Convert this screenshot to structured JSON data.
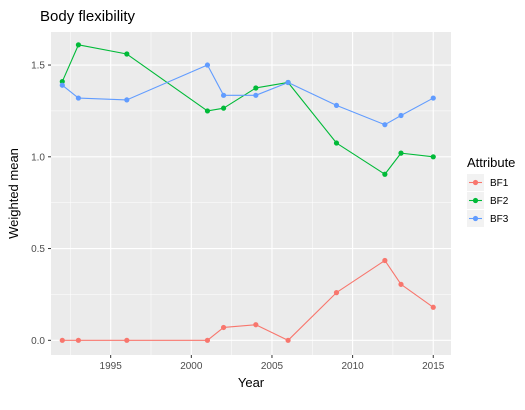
{
  "chart_data": {
    "type": "line",
    "title": "Body flexibility",
    "xlabel": "Year",
    "ylabel": "Weighted mean",
    "xlim": [
      1991.3,
      2016.1
    ],
    "ylim": [
      -0.08,
      1.68
    ],
    "x_ticks": [
      1995,
      2000,
      2005,
      2010,
      2015
    ],
    "x_tick_labels": [
      "1995",
      "2000",
      "2005",
      "2010",
      "2015"
    ],
    "y_ticks": [
      0.0,
      0.5,
      1.0,
      1.5
    ],
    "y_tick_labels": [
      "0.0",
      "0.5",
      "1.0",
      "1.5"
    ],
    "grid": true,
    "legend": {
      "title": "Attribute",
      "position": "right"
    },
    "panel_color": "#ebebeb",
    "series": [
      {
        "name": "BF1",
        "color": "#F8766D",
        "x": [
          1992,
          1993,
          1996,
          2001,
          2002,
          2004,
          2006,
          2009,
          2012,
          2013,
          2015
        ],
        "y": [
          0.0,
          0.0,
          0.0,
          0.0,
          0.07,
          0.085,
          0.0,
          0.26,
          0.435,
          0.305,
          0.18
        ]
      },
      {
        "name": "BF2",
        "color": "#00BA38",
        "x": [
          1992,
          1993,
          1996,
          2001,
          2002,
          2004,
          2006,
          2009,
          2012,
          2013,
          2015
        ],
        "y": [
          1.41,
          1.61,
          1.56,
          1.25,
          1.265,
          1.375,
          1.405,
          1.075,
          0.905,
          1.02,
          1.0
        ]
      },
      {
        "name": "BF3",
        "color": "#619CFF",
        "x": [
          1992,
          1993,
          1996,
          2001,
          2002,
          2004,
          2006,
          2009,
          2012,
          2013,
          2015
        ],
        "y": [
          1.39,
          1.32,
          1.31,
          1.5,
          1.335,
          1.335,
          1.405,
          1.28,
          1.175,
          1.225,
          1.32
        ]
      }
    ]
  }
}
